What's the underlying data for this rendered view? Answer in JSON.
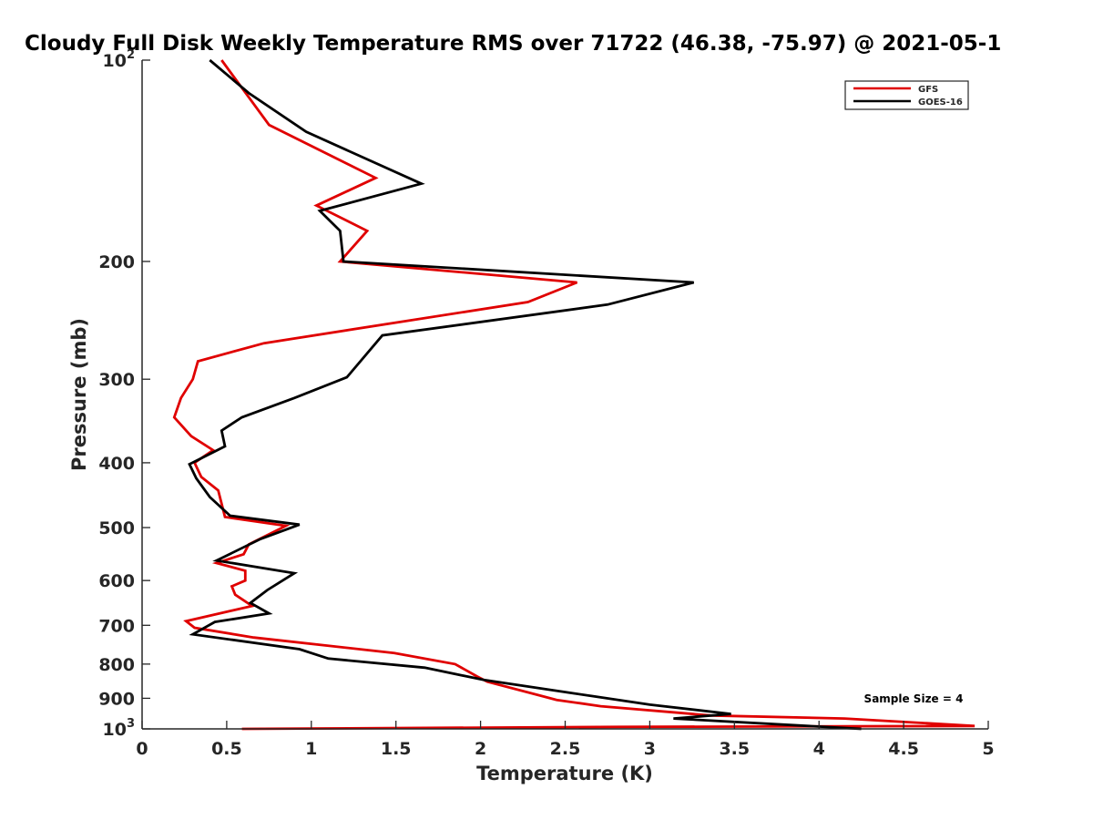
{
  "chart_data": {
    "type": "line",
    "title": "Cloudy Full Disk Weekly Temperature RMS over 71722 (46.38, -75.97) @ 2021-05-1",
    "xlabel": "Temperature (K)",
    "ylabel": "Pressure (mb)",
    "xlim": [
      0,
      5
    ],
    "ylim": [
      1000,
      100
    ],
    "y_scale": "log",
    "y_reversed": true,
    "x_ticks": [
      "0",
      "0.5",
      "1",
      "1.5",
      "2",
      "2.5",
      "3",
      "3.5",
      "4",
      "4.5",
      "5"
    ],
    "y_ticks": [
      {
        "value": 100,
        "label": "10",
        "exp": "2"
      },
      {
        "value": 200,
        "label": "200"
      },
      {
        "value": 300,
        "label": "300"
      },
      {
        "value": 400,
        "label": "400"
      },
      {
        "value": 500,
        "label": "500"
      },
      {
        "value": 600,
        "label": "600"
      },
      {
        "value": 700,
        "label": "700"
      },
      {
        "value": 800,
        "label": "800"
      },
      {
        "value": 900,
        "label": "900"
      },
      {
        "value": 1000,
        "label": "10",
        "exp": "3"
      }
    ],
    "grid": false,
    "legend_position": "top-right",
    "annotation": "Sample Size = 4",
    "series": [
      {
        "name": "GFS",
        "color": "#e00000",
        "points": [
          [
            0.47,
            100
          ],
          [
            0.75,
            125
          ],
          [
            1.38,
            150
          ],
          [
            1.03,
            165
          ],
          [
            1.33,
            180
          ],
          [
            1.17,
            200
          ],
          [
            2.57,
            215
          ],
          [
            2.28,
            230
          ],
          [
            0.72,
            265
          ],
          [
            0.33,
            282
          ],
          [
            0.3,
            300
          ],
          [
            0.23,
            320
          ],
          [
            0.19,
            342
          ],
          [
            0.29,
            365
          ],
          [
            0.42,
            383
          ],
          [
            0.31,
            400
          ],
          [
            0.35,
            420
          ],
          [
            0.45,
            440
          ],
          [
            0.49,
            482
          ],
          [
            0.85,
            497
          ],
          [
            0.63,
            530
          ],
          [
            0.6,
            548
          ],
          [
            0.44,
            565
          ],
          [
            0.61,
            580
          ],
          [
            0.61,
            600
          ],
          [
            0.53,
            612
          ],
          [
            0.55,
            630
          ],
          [
            0.65,
            655
          ],
          [
            0.26,
            690
          ],
          [
            0.31,
            706
          ],
          [
            0.66,
            730
          ],
          [
            1.49,
            770
          ],
          [
            1.85,
            800
          ],
          [
            1.98,
            835
          ],
          [
            2.04,
            850
          ],
          [
            2.45,
            905
          ],
          [
            2.71,
            925
          ],
          [
            3.36,
            955
          ],
          [
            4.15,
            965
          ],
          [
            4.92,
            990
          ],
          [
            2.82,
            993
          ],
          [
            0.59,
            1000
          ]
        ]
      },
      {
        "name": "GOES-16",
        "color": "#000000",
        "points": [
          [
            0.4,
            100
          ],
          [
            0.63,
            112
          ],
          [
            0.97,
            128
          ],
          [
            1.65,
            153
          ],
          [
            1.05,
            168
          ],
          [
            1.17,
            180
          ],
          [
            1.19,
            200
          ],
          [
            3.26,
            215
          ],
          [
            2.75,
            232
          ],
          [
            1.42,
            258
          ],
          [
            1.21,
            298
          ],
          [
            0.9,
            320
          ],
          [
            0.59,
            342
          ],
          [
            0.47,
            358
          ],
          [
            0.49,
            378
          ],
          [
            0.28,
            402
          ],
          [
            0.32,
            422
          ],
          [
            0.4,
            450
          ],
          [
            0.52,
            480
          ],
          [
            0.93,
            495
          ],
          [
            0.7,
            520
          ],
          [
            0.44,
            560
          ],
          [
            0.9,
            585
          ],
          [
            0.74,
            620
          ],
          [
            0.64,
            648
          ],
          [
            0.75,
            672
          ],
          [
            0.43,
            692
          ],
          [
            0.3,
            722
          ],
          [
            0.93,
            760
          ],
          [
            1.1,
            785
          ],
          [
            1.67,
            810
          ],
          [
            2.02,
            845
          ],
          [
            3.0,
            920
          ],
          [
            3.48,
            950
          ],
          [
            3.14,
            965
          ],
          [
            4.25,
            1000
          ]
        ]
      }
    ]
  }
}
